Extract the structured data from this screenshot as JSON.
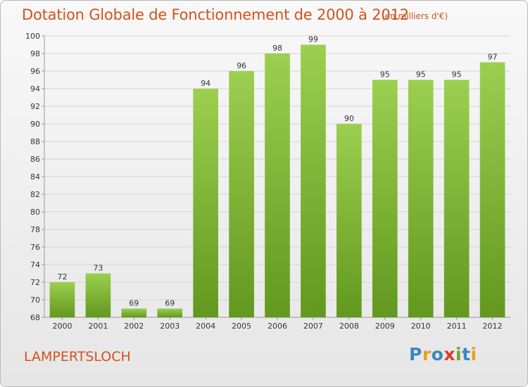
{
  "header": {
    "title": "Dotation Globale de Fonctionnement de 2000 à 2012",
    "subtitle": "(en milliers d'€)"
  },
  "footer": {
    "commune": "LAMPERTSLOCH",
    "logo_letters": [
      "P",
      "r",
      "o",
      "x",
      "i",
      "t",
      "i"
    ],
    "logo_colors": [
      "#3a86c8",
      "#e8a020",
      "#3a86c8",
      "#e03a2a",
      "#6aa82a",
      "#3a86c8",
      "#e8a020"
    ]
  },
  "chart_data": {
    "type": "bar",
    "title": "Dotation Globale de Fonctionnement de 2000 à 2012",
    "subtitle": "(en milliers d'€)",
    "categories": [
      "2000",
      "2001",
      "2002",
      "2003",
      "2004",
      "2005",
      "2006",
      "2007",
      "2008",
      "2009",
      "2010",
      "2011",
      "2012"
    ],
    "values": [
      72,
      73,
      69,
      69,
      94,
      96,
      98,
      99,
      90,
      95,
      95,
      95,
      97
    ],
    "ylim": [
      68,
      100
    ],
    "yticks": [
      68,
      70,
      72,
      74,
      76,
      78,
      80,
      82,
      84,
      86,
      88,
      90,
      92,
      94,
      96,
      98,
      100
    ],
    "grid": true,
    "bar_color": "#8cc63f",
    "bar_color_dark": "#6fa128"
  }
}
